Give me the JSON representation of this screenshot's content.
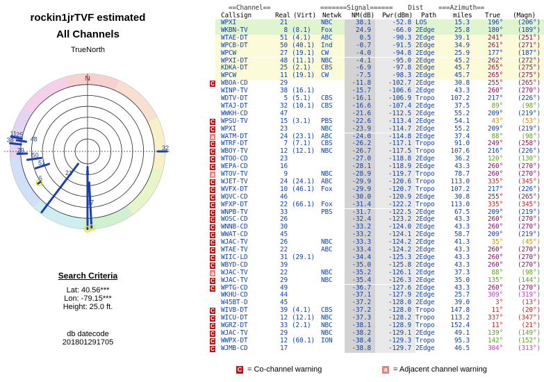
{
  "title_line1": "rockin1jrTVF estimated",
  "title_line2": "All Channels",
  "north_label": "TrueNorth",
  "north_marker": "N",
  "radar_labels": [
    {
      "text": "32",
      "az": 90,
      "r": 1.0
    },
    {
      "text": "11",
      "az": 281,
      "r": 0.97
    },
    {
      "text": "25",
      "az": 281,
      "r": 0.89
    },
    {
      "text": "48",
      "az": 279,
      "r": 0.7
    },
    {
      "text": "38",
      "az": 276,
      "r": 1.0
    },
    {
      "text": "29",
      "az": 268,
      "r": 0.86
    },
    {
      "text": "50",
      "az": 262,
      "r": 0.68
    },
    {
      "text": "51",
      "az": 252,
      "r": 0.62
    },
    {
      "text": "21",
      "az": 217,
      "r": 0.4
    },
    {
      "text": "8",
      "az": 180,
      "r": 0.32
    },
    {
      "text": "5",
      "az": 237,
      "r": 0.72
    },
    {
      "text": "27",
      "az": 177,
      "r": 0.7
    }
  ],
  "search_criteria": {
    "title": "Search Criteria",
    "lat": "Lat: 40.56***",
    "lon": "Lon: -79.15***",
    "height": "Height: 25.0 ft.",
    "db_label": "db datecode",
    "db_value": "201801291705"
  },
  "table_header_line1": "  ==Channel==             =======Signal======    Dist    ===Azimuth==",
  "headers": {
    "callsign": "Callsign",
    "real": "Real",
    "virt": "(Virt)",
    "netwk": "Netwk",
    "nm": "NM(dB)",
    "pwr": "Pwr(dBm)",
    "path": "Path",
    "dist": "miles",
    "true": "True",
    "magn": "(Magn)"
  },
  "rows": [
    {
      "call": "WPXI",
      "real": "21",
      "virt": "",
      "net": "NBC",
      "nm": "38.1",
      "pwr": "-52.8",
      "path": "LOS",
      "dist": "15.3",
      "az": "196°",
      "mag": "(206°)",
      "bg": "#dff5d0",
      "warn": "",
      "azc": "#1040b0"
    },
    {
      "call": "WKBN-TV",
      "real": "8",
      "virt": "(8.1)",
      "net": "Fox",
      "nm": "24.9",
      "pwr": "-66.0",
      "path": "2Edge",
      "dist": "25.8",
      "az": "180°",
      "mag": "(189°)",
      "bg": "#dff5d0",
      "warn": "",
      "azc": "#1040b0"
    },
    {
      "call": "WTAE-DT",
      "real": "51",
      "virt": "(4.1)",
      "net": "ABC",
      "nm": "0.5",
      "pwr": "-90.3",
      "path": "2Edge",
      "dist": "39.1",
      "az": "241°",
      "mag": "(251°)",
      "bg": "#fbfbd9",
      "warn": "",
      "azc": "#8a1060"
    },
    {
      "call": "WPCB-DT",
      "real": "50",
      "virt": "(40.1)",
      "net": "Ind",
      "nm": "-0.7",
      "pwr": "-91.5",
      "path": "2Edge",
      "dist": "34.9",
      "az": "261°",
      "mag": "(271°)",
      "bg": "#fbfbd9",
      "warn": "",
      "azc": "#8a1060"
    },
    {
      "call": "WPCW",
      "real": "27",
      "virt": "(19.1)",
      "net": "CW",
      "nm": "-4.0",
      "pwr": "-94.8",
      "path": "2Edge",
      "dist": "25.9",
      "az": "177°",
      "mag": "(187°)",
      "bg": "#fbfbd9",
      "warn": "",
      "azc": "#1040b0"
    },
    {
      "call": "WPXI-DT",
      "real": "48",
      "virt": "(11.1)",
      "net": "NBC",
      "nm": "-4.1",
      "pwr": "-95.0",
      "path": "2Edge",
      "dist": "45.2",
      "az": "262°",
      "mag": "(272°)",
      "bg": "#fbfbd9",
      "warn": "",
      "azc": "#8a1060"
    },
    {
      "call": "KDKA-DT",
      "real": "25",
      "virt": "(2.1)",
      "net": "CBS",
      "nm": "-6.9",
      "pwr": "-97.8",
      "path": "2Edge",
      "dist": "45.7",
      "az": "265°",
      "mag": "(275°)",
      "bg": "#fbfbd9",
      "warn": "",
      "azc": "#8a1060"
    },
    {
      "call": "WPCW",
      "real": "11",
      "virt": "(19.1)",
      "net": "CW",
      "nm": "-7.5",
      "pwr": "-98.3",
      "path": "2Edge",
      "dist": "45.7",
      "az": "265°",
      "mag": "(275°)",
      "bg": "#fbfbd9",
      "warn": "",
      "azc": "#8a1060"
    },
    {
      "call": "WBOA-CD",
      "real": "29",
      "virt": "",
      "net": "",
      "nm": "-11.8",
      "pwr": "-102.7",
      "path": "2Edge",
      "dist": "30.8",
      "az": "255°",
      "mag": "(265°)",
      "bg": "#ffffff",
      "warn": "C",
      "azc": "#8a1060"
    },
    {
      "call": "WINP-TV",
      "real": "38",
      "virt": "(16.1)",
      "net": "",
      "nm": "-15.7",
      "pwr": "-106.6",
      "path": "2Edge",
      "dist": "43.3",
      "az": "260°",
      "mag": "(270°)",
      "bg": "#ffffff",
      "warn": "",
      "azc": "#8a1060"
    },
    {
      "call": "WDTV-DT",
      "real": "5",
      "virt": "(5.1)",
      "net": "CBS",
      "nm": "-16.1",
      "pwr": "-106.9",
      "path": "Tropo",
      "dist": "107.2",
      "az": "217°",
      "mag": "(226°)",
      "bg": "#ffffff",
      "warn": "",
      "azc": "#1040b0"
    },
    {
      "call": "WTAJ-DT",
      "real": "32",
      "virt": "(10.1)",
      "net": "CBS",
      "nm": "-16.6",
      "pwr": "-107.4",
      "path": "2Edge",
      "dist": "37.5",
      "az": "89°",
      "mag": "(98°)",
      "bg": "#ffffff",
      "warn": "",
      "azc": "#60a020"
    },
    {
      "call": "WWKH-CD",
      "real": "47",
      "virt": "",
      "net": "",
      "nm": "-21.6",
      "pwr": "-112.5",
      "path": "2Edge",
      "dist": "55.2",
      "az": "209°",
      "mag": "(219°)",
      "bg": "#ffffff",
      "warn": "",
      "azc": "#1040b0"
    },
    {
      "call": "WPSU-TV",
      "real": "15",
      "virt": "(3.1)",
      "net": "PBS",
      "nm": "-22.6",
      "pwr": "-113.4",
      "path": "2Edge",
      "dist": "54.1",
      "az": "43°",
      "mag": "(53°)",
      "bg": "#ffffff",
      "warn": "C",
      "azc": "#e08a00"
    },
    {
      "call": "WPXI",
      "real": "23",
      "virt": "",
      "net": "NBC",
      "nm": "-23.9",
      "pwr": "-114.7",
      "path": "2Edge",
      "dist": "55.2",
      "az": "209°",
      "mag": "(219°)",
      "bg": "#ffffff",
      "warn": "C",
      "azc": "#1040b0"
    },
    {
      "call": "WATM-DT",
      "real": "24",
      "virt": "(23.1)",
      "net": "ABC",
      "nm": "-24.0",
      "pwr": "-114.8",
      "path": "2Edge",
      "dist": "37.4",
      "az": "88°",
      "mag": "(98°)",
      "bg": "#ffffff",
      "warn": "a",
      "azc": "#60a020"
    },
    {
      "call": "WTRF-DT",
      "real": "7",
      "virt": "(7.1)",
      "net": "CBS",
      "nm": "-26.2",
      "pwr": "-117.1",
      "path": "Tropo",
      "dist": "91.0",
      "az": "249°",
      "mag": "(258°)",
      "bg": "#ffffff",
      "warn": "C",
      "azc": "#8a1060"
    },
    {
      "call": "WBOY-TV",
      "real": "12",
      "virt": "(12.1)",
      "net": "NBC",
      "nm": "-26.7",
      "pwr": "-117.5",
      "path": "Tropo",
      "dist": "107.6",
      "az": "216°",
      "mag": "(226°)",
      "bg": "#ffffff",
      "warn": "C",
      "azc": "#1040b0"
    },
    {
      "call": "WTOO-CD",
      "real": "23",
      "virt": "",
      "net": "",
      "nm": "-27.0",
      "pwr": "-118.8",
      "path": "2Edge",
      "dist": "36.2",
      "az": "120°",
      "mag": "(130°)",
      "bg": "#ffffff",
      "warn": "C",
      "azc": "#60a020"
    },
    {
      "call": "WEPA-CD",
      "real": "16",
      "virt": "",
      "net": "",
      "nm": "-28.1",
      "pwr": "-118.9",
      "path": "2Edge",
      "dist": "43.3",
      "az": "260°",
      "mag": "(270°)",
      "bg": "#ffffff",
      "warn": "C",
      "azc": "#8a1060"
    },
    {
      "call": "WTOV-TV",
      "real": "9",
      "virt": "",
      "net": "NBC",
      "nm": "-28.9",
      "pwr": "-119.7",
      "path": "Tropo",
      "dist": "78.7",
      "az": "260°",
      "mag": "(270°)",
      "bg": "#ffffff",
      "warn": "a",
      "azc": "#8a1060"
    },
    {
      "call": "WJET-TV",
      "real": "24",
      "virt": "(24.1)",
      "net": "ABC",
      "nm": "-29.9",
      "pwr": "-120.6",
      "path": "Tropo",
      "dist": "113.0",
      "az": "335°",
      "mag": "(345°)",
      "bg": "#ffffff",
      "warn": "C",
      "azc": "#d02020"
    },
    {
      "call": "WVFX-DT",
      "real": "10",
      "virt": "(46.1)",
      "net": "Fox",
      "nm": "-29.9",
      "pwr": "-120.7",
      "path": "Tropo",
      "dist": "107.2",
      "az": "217°",
      "mag": "(226°)",
      "bg": "#ffffff",
      "warn": "C",
      "azc": "#1040b0"
    },
    {
      "call": "WQVC-CD",
      "real": "46",
      "virt": "",
      "net": "",
      "nm": "-30.0",
      "pwr": "-120.9",
      "path": "2Edge",
      "dist": "30.8",
      "az": "255°",
      "mag": "(265°)",
      "bg": "#ffffff",
      "warn": "C",
      "azc": "#8a1060"
    },
    {
      "call": "WFXP-DT",
      "real": "22",
      "virt": "(66.1)",
      "net": "Fox",
      "nm": "-31.4",
      "pwr": "-122.2",
      "path": "Tropo",
      "dist": "113.0",
      "az": "335°",
      "mag": "(345°)",
      "bg": "#ffffff",
      "warn": "C",
      "azc": "#d02020"
    },
    {
      "call": "WNPB-TV",
      "real": "33",
      "virt": "",
      "net": "PBS",
      "nm": "-31.7",
      "pwr": "-122.5",
      "path": "2Edge",
      "dist": "67.5",
      "az": "209°",
      "mag": "(219°)",
      "bg": "#ffffff",
      "warn": "C",
      "azc": "#1040b0"
    },
    {
      "call": "WOSC-CD",
      "real": "26",
      "virt": "",
      "net": "",
      "nm": "-32.4",
      "pwr": "-123.2",
      "path": "2Edge",
      "dist": "43.3",
      "az": "260°",
      "mag": "(270°)",
      "bg": "#ffffff",
      "warn": "C",
      "azc": "#8a1060"
    },
    {
      "call": "WNNB-CD",
      "real": "30",
      "virt": "",
      "net": "",
      "nm": "-33.2",
      "pwr": "-124.0",
      "path": "2Edge",
      "dist": "43.3",
      "az": "260°",
      "mag": "(270°)",
      "bg": "#ffffff",
      "warn": "C",
      "azc": "#8a1060"
    },
    {
      "call": "WWAT-CD",
      "real": "45",
      "virt": "",
      "net": "",
      "nm": "-33.2",
      "pwr": "-124.1",
      "path": "2Edge",
      "dist": "58.7",
      "az": "209°",
      "mag": "(219°)",
      "bg": "#ffffff",
      "warn": "C",
      "azc": "#1040b0"
    },
    {
      "call": "WJAC-TV",
      "real": "26",
      "virt": "",
      "net": "NBC",
      "nm": "-33.3",
      "pwr": "-124.2",
      "path": "2Edge",
      "dist": "41.3",
      "az": "35°",
      "mag": "(45°)",
      "bg": "#ffffff",
      "warn": "Ca",
      "azc": "#e08a00"
    },
    {
      "call": "WTAE-TV",
      "real": "22",
      "virt": "",
      "net": "ABC",
      "nm": "-33.4",
      "pwr": "-124.2",
      "path": "2Edge",
      "dist": "43.3",
      "az": "260°",
      "mag": "(270°)",
      "bg": "#ffffff",
      "warn": "Ca",
      "azc": "#8a1060"
    },
    {
      "call": "WIIC-LD",
      "real": "31",
      "virt": "(29.1)",
      "net": "",
      "nm": "-34.4",
      "pwr": "-125.3",
      "path": "2Edge",
      "dist": "43.3",
      "az": "260°",
      "mag": "(270°)",
      "bg": "#ffffff",
      "warn": "C",
      "azc": "#8a1060"
    },
    {
      "call": "WBYD-CD",
      "real": "39",
      "virt": "",
      "net": "",
      "nm": "-35.0",
      "pwr": "-125.8",
      "path": "2Edge",
      "dist": "43.3",
      "az": "260°",
      "mag": "(270°)",
      "bg": "#ffffff",
      "warn": "C",
      "azc": "#8a1060"
    },
    {
      "call": "WJAC-TV",
      "real": "22",
      "virt": "",
      "net": "NBC",
      "nm": "-35.2",
      "pwr": "-126.1",
      "path": "2Edge",
      "dist": "37.3",
      "az": "88°",
      "mag": "(98°)",
      "bg": "#ffffff",
      "warn": "a",
      "azc": "#60a020"
    },
    {
      "call": "WJAC-TV",
      "real": "29",
      "virt": "",
      "net": "NBC",
      "nm": "-35.4",
      "pwr": "-126.3",
      "path": "2Edge",
      "dist": "35.0",
      "az": "135°",
      "mag": "(144°)",
      "bg": "#ffffff",
      "warn": "C",
      "azc": "#60a020"
    },
    {
      "call": "WPTG-CD",
      "real": "49",
      "virt": "",
      "net": "",
      "nm": "-36.7",
      "pwr": "-127.6",
      "path": "2Edge",
      "dist": "43.3",
      "az": "260°",
      "mag": "(270°)",
      "bg": "#ffffff",
      "warn": "C",
      "azc": "#8a1060"
    },
    {
      "call": "WKHU-CD",
      "real": "44",
      "virt": "",
      "net": "",
      "nm": "-37.1",
      "pwr": "-127.9",
      "path": "2Edge",
      "dist": "25.7",
      "az": "309°",
      "mag": "(319°)",
      "bg": "#ffffff",
      "warn": "",
      "azc": "#c040c0"
    },
    {
      "call": "W45BT-D",
      "real": "45",
      "virt": "",
      "net": "",
      "nm": "-37.2",
      "pwr": "-128.0",
      "path": "2Edge",
      "dist": "39.0",
      "az": "3°",
      "mag": "(13°)",
      "bg": "#ffffff",
      "warn": "",
      "azc": "#d02020"
    },
    {
      "call": "WIVB-DT",
      "real": "39",
      "virt": "(4.1)",
      "net": "CBS",
      "nm": "-37.2",
      "pwr": "-128.0",
      "path": "Tropo",
      "dist": "147.8",
      "az": "11°",
      "mag": "(20°)",
      "bg": "#ffffff",
      "warn": "C",
      "azc": "#d02020"
    },
    {
      "call": "WICU-DT",
      "real": "12",
      "virt": "(12.1)",
      "net": "NBC",
      "nm": "-37.3",
      "pwr": "-128.2",
      "path": "Tropo",
      "dist": "113.2",
      "az": "337°",
      "mag": "(347°)",
      "bg": "#ffffff",
      "warn": "C",
      "azc": "#d02020"
    },
    {
      "call": "WGRZ-DT",
      "real": "33",
      "virt": "(2.1)",
      "net": "NBC",
      "nm": "-38.1",
      "pwr": "-128.9",
      "path": "Tropo",
      "dist": "152.4",
      "az": "11°",
      "mag": "(21°)",
      "bg": "#ffffff",
      "warn": "C",
      "azc": "#d02020"
    },
    {
      "call": "WJAC-TV",
      "real": "29",
      "virt": "",
      "net": "NBC",
      "nm": "-38.2",
      "pwr": "-129.1",
      "path": "2Edge",
      "dist": "49.1",
      "az": "139°",
      "mag": "(149°)",
      "bg": "#ffffff",
      "warn": "C",
      "azc": "#60a020"
    },
    {
      "call": "WWPX-DT",
      "real": "12",
      "virt": "(60.1)",
      "net": "ION",
      "nm": "-38.4",
      "pwr": "-129.3",
      "path": "Tropo",
      "dist": "95.3",
      "az": "142°",
      "mag": "(152°)",
      "bg": "#ffffff",
      "warn": "C",
      "azc": "#60a020"
    },
    {
      "call": "WJMB-CD",
      "real": "17",
      "virt": "",
      "net": "",
      "nm": "-38.8",
      "pwr": "-129.7",
      "path": "2Edge",
      "dist": "46.5",
      "az": "304°",
      "mag": "(313°)",
      "bg": "#ffffff",
      "warn": "C",
      "azc": "#c040c0"
    }
  ],
  "legend": {
    "co_box": "C",
    "co_text": "= Co-channel warning",
    "adj_box": "a",
    "adj_text": "= Adjacent channel warning",
    "co_color": "#c01010",
    "adj_color": "#e88080"
  }
}
